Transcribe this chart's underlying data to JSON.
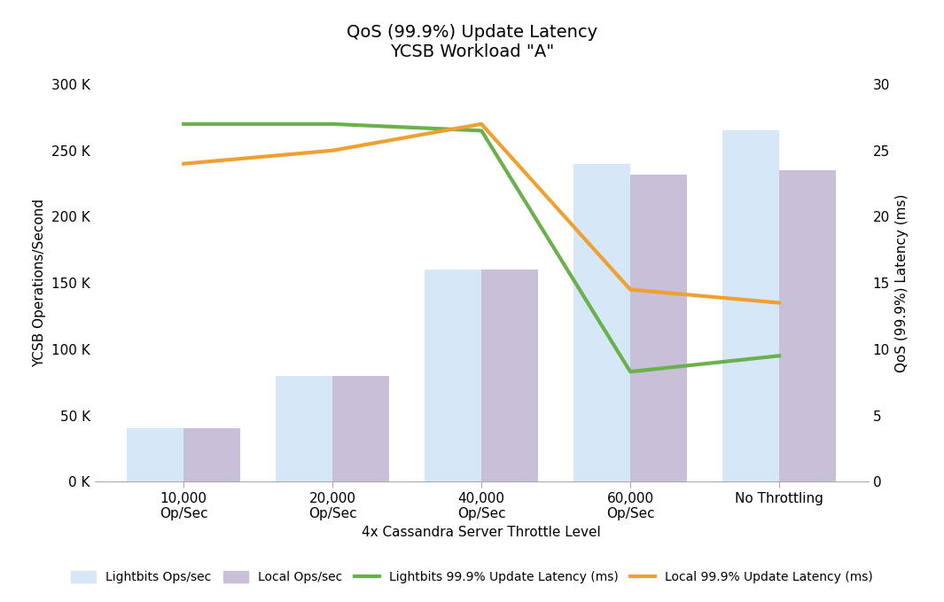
{
  "title_line1": "QoS (99.9%) Update Latency",
  "title_line2": "YCSB Workload \"A\"",
  "categories": [
    "10,000\nOp/Sec",
    "20,000\nOp/Sec",
    "40,000\nOp/Sec",
    "60,000\nOp/Sec",
    "No Throttling"
  ],
  "lightbits_ops": [
    40000,
    80000,
    160000,
    240000,
    265000
  ],
  "local_ops": [
    40000,
    80000,
    160000,
    232000,
    235000
  ],
  "lightbits_latency": [
    27.0,
    27.0,
    26.5,
    8.3,
    9.5
  ],
  "local_latency": [
    24.0,
    25.0,
    27.0,
    14.5,
    13.5
  ],
  "bar_color_lightbits": "#d6e8f7",
  "bar_color_local": "#c8c0d8",
  "line_color_lightbits": "#6ab04c",
  "line_color_local": "#f0a030",
  "left_ylabel": "YCSB Operations/Second",
  "right_ylabel": "QoS (99.9%) Latency (ms)",
  "xlabel": "4x Cassandra Server Throttle Level",
  "ylim_left": [
    0,
    300000
  ],
  "ylim_right": [
    0,
    30
  ],
  "yticks_left": [
    0,
    50000,
    100000,
    150000,
    200000,
    250000,
    300000
  ],
  "yticks_left_labels": [
    "0 K",
    "50 K",
    "100 K",
    "150 K",
    "200 K",
    "250 K",
    "300 K"
  ],
  "yticks_right": [
    0,
    5,
    10,
    15,
    20,
    25,
    30
  ],
  "legend_labels": [
    "Lightbits Ops/sec",
    "Local Ops/sec",
    "Lightbits 99.9% Update Latency (ms)",
    "Local 99.9% Update Latency (ms)"
  ],
  "bar_width": 0.38,
  "line_width": 3.0,
  "title_fontsize": 14,
  "axis_label_fontsize": 11,
  "tick_fontsize": 11,
  "legend_fontsize": 10,
  "background_color": "#ffffff"
}
